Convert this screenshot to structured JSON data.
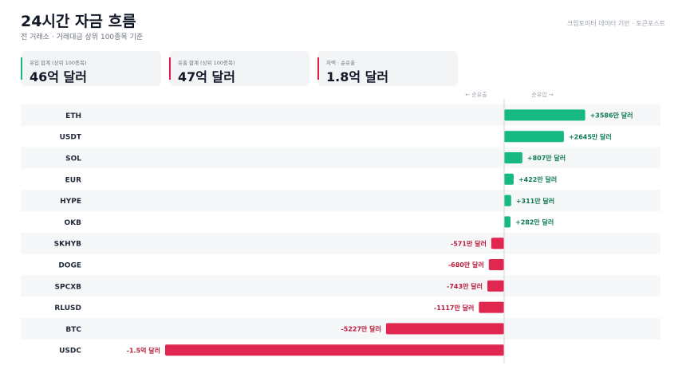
{
  "header": {
    "title": "24시간 자금 흐름",
    "subtitle": "전 거래소 · 거래대금 상위 100종목 기준",
    "source": "크립토미터 데이터 기반 · 토큰포스트"
  },
  "cards": [
    {
      "label": "유입 합계 (상위 100종목)",
      "value": "46억 달러",
      "color": "#16b981"
    },
    {
      "label": "유출 합계 (상위 100종목)",
      "value": "47억 달러",
      "color": "#e11d48"
    },
    {
      "label": "차액 · 순유출",
      "value": "1.8억 달러",
      "color": "#e11d48"
    }
  ],
  "axis": {
    "outflow_label": "← 순유출",
    "inflow_label": "순유입 →"
  },
  "colors": {
    "positive": "#16b981",
    "negative": "#e0274f",
    "positive_text": "#0f7a52",
    "negative_text": "#b91c3c"
  },
  "chart_data": {
    "type": "bar",
    "orientation": "horizontal",
    "unit": "달러",
    "categories": [
      "ETH",
      "USDT",
      "SOL",
      "EUR",
      "HYPE",
      "OKB",
      "SKHYB",
      "DOGE",
      "SPCXB",
      "RLUSD",
      "BTC",
      "USDC"
    ],
    "values": [
      35860000,
      26450000,
      8070000,
      4220000,
      3110000,
      2820000,
      -5710000,
      -6800000,
      -7430000,
      -11170000,
      -52270000,
      -150000000
    ],
    "value_labels": [
      "+3586만 달러",
      "+2645만 달러",
      "+807만 달러",
      "+422만 달러",
      "+311만 달러",
      "+282만 달러",
      "-571만 달러",
      "-680만 달러",
      "-743만 달러",
      "-1117만 달러",
      "-5227만 달러",
      "-1.5억 달러"
    ],
    "grid": false,
    "legend": "none"
  }
}
